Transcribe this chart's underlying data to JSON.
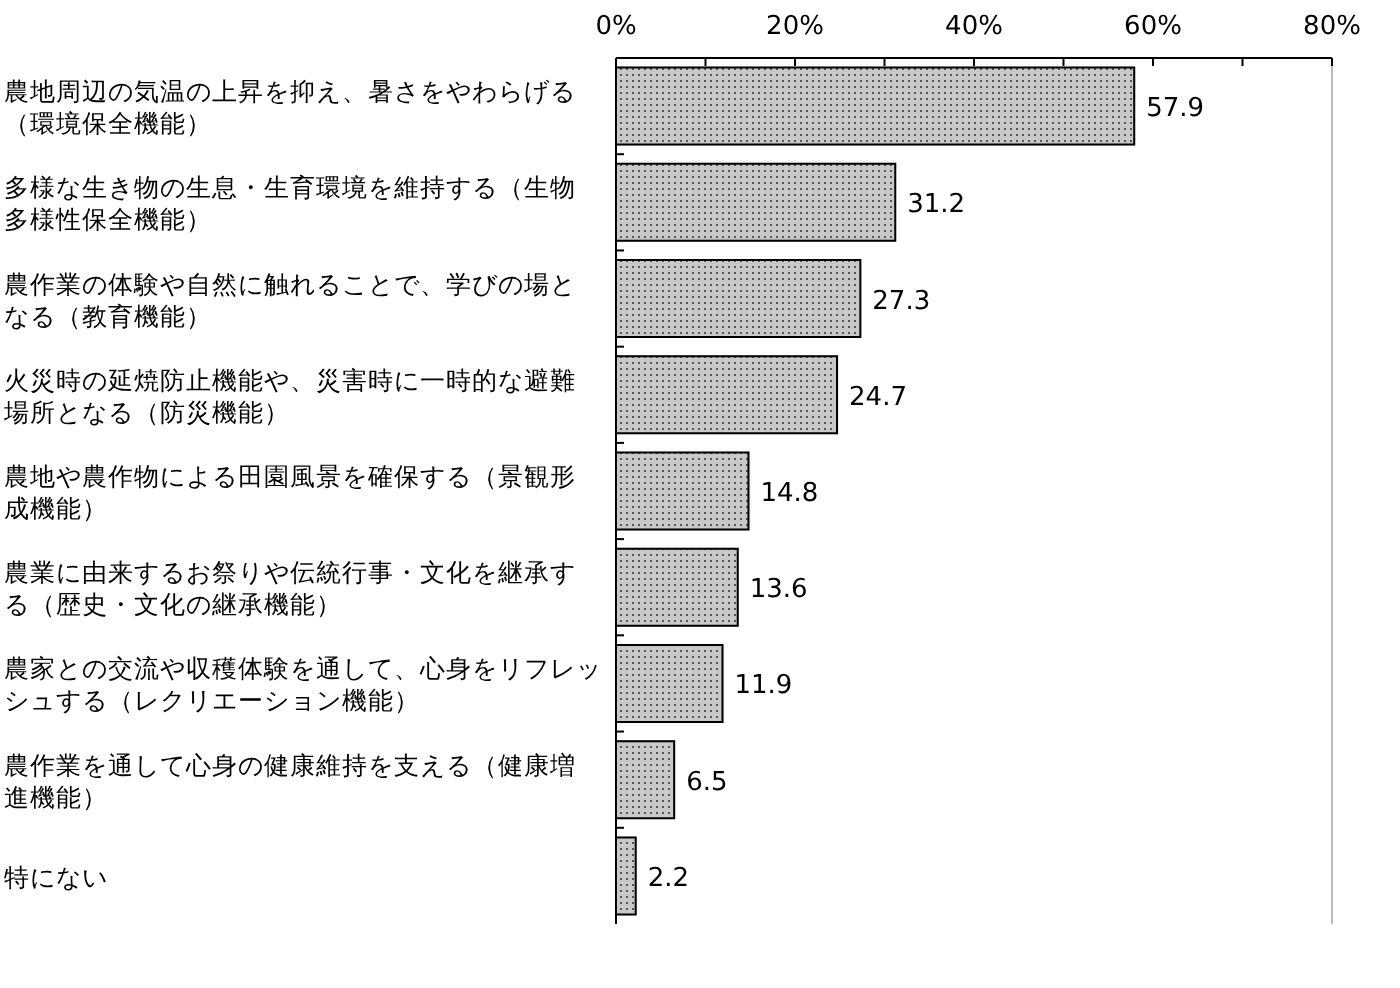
{
  "chart_data": {
    "type": "bar",
    "orientation": "horizontal",
    "categories": [
      "農地周辺の気温の上昇を抑え、暑さをやわらげる（環境保全機能）",
      "多様な生き物の生息・生育環境を維持する（生物多様性保全機能）",
      "農作業の体験や自然に触れることで、学びの場となる（教育機能）",
      "火災時の延焼防止機能や、災害時に一時的な避難場所となる（防災機能）",
      "農地や農作物による田園風景を確保する（景観形成機能）",
      "農業に由来するお祭りや伝統行事・文化を継承する（歴史・文化の継承機能）",
      "農家との交流や収穫体験を通して、心身をリフレッシュする（レクリエーション機能）",
      "農作業を通して心身の健康維持を支える（健康増進機能）",
      "特にない"
    ],
    "values": [
      57.9,
      31.2,
      27.3,
      24.7,
      14.8,
      13.6,
      11.9,
      6.5,
      2.2
    ],
    "color": "#c8c8c8",
    "xlim": [
      0,
      80
    ],
    "xticks": [
      {
        "value": 0,
        "label": "0%"
      },
      {
        "value": 10,
        "label": null
      },
      {
        "value": 20,
        "label": "20%"
      },
      {
        "value": 30,
        "label": null
      },
      {
        "value": 40,
        "label": "40%"
      },
      {
        "value": 50,
        "label": null
      },
      {
        "value": 60,
        "label": "60%"
      },
      {
        "value": 70,
        "label": null
      },
      {
        "value": 80,
        "label": "80%"
      }
    ],
    "data_labels": true,
    "grid": false
  }
}
